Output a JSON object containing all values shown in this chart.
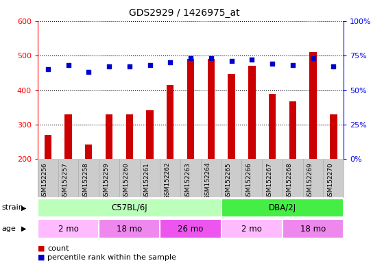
{
  "title": "GDS2929 / 1426975_at",
  "samples": [
    "GSM152256",
    "GSM152257",
    "GSM152258",
    "GSM152259",
    "GSM152260",
    "GSM152261",
    "GSM152262",
    "GSM152263",
    "GSM152264",
    "GSM152265",
    "GSM152266",
    "GSM152267",
    "GSM152268",
    "GSM152269",
    "GSM152270"
  ],
  "counts": [
    270,
    330,
    243,
    330,
    330,
    342,
    415,
    490,
    490,
    447,
    470,
    390,
    367,
    510,
    330
  ],
  "percentile_ranks": [
    65,
    68,
    63,
    67,
    67,
    68,
    70,
    73,
    73,
    71,
    72,
    69,
    68,
    73,
    67
  ],
  "ylim_left": [
    200,
    600
  ],
  "ylim_right": [
    0,
    100
  ],
  "yticks_left": [
    200,
    300,
    400,
    500,
    600
  ],
  "yticks_right": [
    0,
    25,
    50,
    75,
    100
  ],
  "bar_color": "#cc0000",
  "dot_color": "#0000cc",
  "strain_groups": [
    {
      "label": "C57BL/6J",
      "start": 0,
      "end": 9,
      "color": "#bbffbb"
    },
    {
      "label": "DBA/2J",
      "start": 9,
      "end": 15,
      "color": "#44ee44"
    }
  ],
  "age_groups": [
    {
      "label": "2 mo",
      "start": 0,
      "end": 3,
      "color": "#ffbbff"
    },
    {
      "label": "18 mo",
      "start": 3,
      "end": 6,
      "color": "#ee88ee"
    },
    {
      "label": "26 mo",
      "start": 6,
      "end": 9,
      "color": "#ee55ee"
    },
    {
      "label": "2 mo",
      "start": 9,
      "end": 12,
      "color": "#ffbbff"
    },
    {
      "label": "18 mo",
      "start": 12,
      "end": 15,
      "color": "#ee88ee"
    }
  ],
  "bar_width": 0.35,
  "plot_bg": "#ffffff",
  "label_bg": "#cccccc",
  "fig_bg": "#ffffff"
}
